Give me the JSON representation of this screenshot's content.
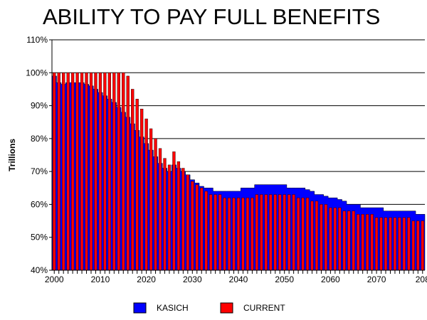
{
  "chart_data": {
    "type": "bar",
    "title": "ABILITY TO PAY FULL BENEFITS",
    "ylabel": "Trillions",
    "xlabel": "",
    "ylim": [
      40,
      110
    ],
    "yticks": [
      "40%",
      "50%",
      "60%",
      "70%",
      "80%",
      "90%",
      "100%",
      "110%"
    ],
    "xticks": [
      "2000",
      "2010",
      "2020",
      "2030",
      "2040",
      "2050",
      "2060",
      "2070",
      "208"
    ],
    "xlim": [
      2000,
      2080
    ],
    "grid": true,
    "legend_position": "bottom",
    "colors": {
      "kasich": "#0000ff",
      "current": "#ff0000",
      "grid": "#000000"
    },
    "series": [
      {
        "name": "KASICH",
        "type": "area",
        "x": [
          2000,
          2001,
          2002,
          2003,
          2004,
          2005,
          2006,
          2007,
          2008,
          2009,
          2010,
          2011,
          2012,
          2013,
          2014,
          2015,
          2016,
          2017,
          2018,
          2019,
          2020,
          2021,
          2022,
          2023,
          2024,
          2025,
          2026,
          2027,
          2028,
          2029,
          2030,
          2031,
          2032,
          2033,
          2034,
          2035,
          2036,
          2037,
          2038,
          2039,
          2040,
          2041,
          2042,
          2043,
          2044,
          2045,
          2046,
          2047,
          2048,
          2049,
          2050,
          2051,
          2052,
          2053,
          2054,
          2055,
          2056,
          2057,
          2058,
          2059,
          2060,
          2061,
          2062,
          2063,
          2064,
          2065,
          2066,
          2067,
          2068,
          2069,
          2070,
          2071,
          2072,
          2073,
          2074,
          2075,
          2076,
          2077,
          2078,
          2079,
          2080
        ],
        "values": [
          99,
          97,
          96.5,
          97,
          97,
          97,
          97,
          96.5,
          96,
          95,
          94,
          93,
          92,
          91,
          89.5,
          88,
          86.5,
          84.5,
          82.5,
          80.5,
          78.5,
          76.5,
          74.5,
          72.5,
          71,
          70,
          72,
          71,
          70,
          69,
          67.5,
          66.5,
          65.5,
          65,
          65,
          64,
          64,
          64,
          64,
          64,
          64,
          65,
          65,
          65,
          66,
          66,
          66,
          66,
          66,
          66,
          66,
          65,
          65,
          65,
          65,
          64.5,
          64,
          63,
          63,
          62.5,
          62,
          62,
          61.5,
          61,
          60,
          60,
          60,
          59,
          59,
          59,
          59,
          59,
          58,
          58,
          58,
          58,
          58,
          58,
          58,
          57,
          57
        ]
      },
      {
        "name": "CURRENT",
        "type": "bar",
        "x": [
          2000,
          2001,
          2002,
          2003,
          2004,
          2005,
          2006,
          2007,
          2008,
          2009,
          2010,
          2011,
          2012,
          2013,
          2014,
          2015,
          2016,
          2017,
          2018,
          2019,
          2020,
          2021,
          2022,
          2023,
          2024,
          2025,
          2026,
          2027,
          2028,
          2029,
          2030,
          2031,
          2032,
          2033,
          2034,
          2035,
          2036,
          2037,
          2038,
          2039,
          2040,
          2041,
          2042,
          2043,
          2044,
          2045,
          2046,
          2047,
          2048,
          2049,
          2050,
          2051,
          2052,
          2053,
          2054,
          2055,
          2056,
          2057,
          2058,
          2059,
          2060,
          2061,
          2062,
          2063,
          2064,
          2065,
          2066,
          2067,
          2068,
          2069,
          2070,
          2071,
          2072,
          2073,
          2074,
          2075,
          2076,
          2077,
          2078,
          2079,
          2080
        ],
        "values": [
          100,
          100,
          100,
          100,
          100,
          100,
          100,
          100,
          100,
          100,
          100,
          100,
          100,
          100,
          100,
          100,
          99,
          95,
          92,
          89,
          86,
          83,
          80,
          77,
          74,
          72,
          76,
          73,
          71,
          69,
          67,
          66,
          65,
          64,
          63,
          63,
          63,
          62,
          62,
          62,
          62,
          62,
          62,
          62,
          63,
          63,
          63,
          63,
          63,
          63,
          63,
          63,
          63,
          62,
          62,
          62,
          61,
          61,
          60,
          60,
          59,
          59,
          59,
          58,
          58,
          58,
          57,
          57,
          57,
          57,
          56,
          56,
          56,
          56,
          56,
          56,
          56,
          56,
          55,
          55,
          55
        ]
      }
    ],
    "legend": [
      {
        "label": "KASICH",
        "color": "#0000ff"
      },
      {
        "label": "CURRENT",
        "color": "#ff0000"
      }
    ]
  }
}
